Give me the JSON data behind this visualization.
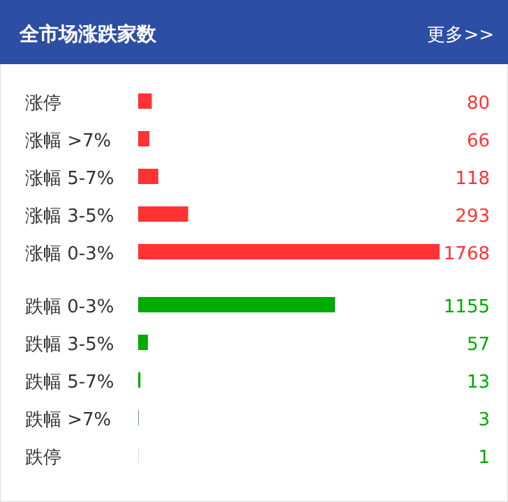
{
  "chart_data": {
    "type": "bar",
    "orientation": "horizontal",
    "title": "全市场涨跌家数",
    "annotations": [
      "更多>>"
    ],
    "categories": [
      "涨停",
      "涨幅 >7%",
      "涨幅 5-7%",
      "涨幅 3-5%",
      "涨幅 0-3%",
      "跌幅 0-3%",
      "跌幅 3-5%",
      "跌幅 5-7%",
      "跌幅 >7%",
      "跌停"
    ],
    "values": [
      80,
      66,
      118,
      293,
      1768,
      1155,
      57,
      13,
      3,
      1
    ],
    "colors": [
      "#ff3333",
      "#ff3333",
      "#ff3333",
      "#ff3333",
      "#ff3333",
      "#00aa00",
      "#00aa00",
      "#00aa00",
      "#00aa00",
      "#00aa00"
    ],
    "data_labels": true
  }
}
